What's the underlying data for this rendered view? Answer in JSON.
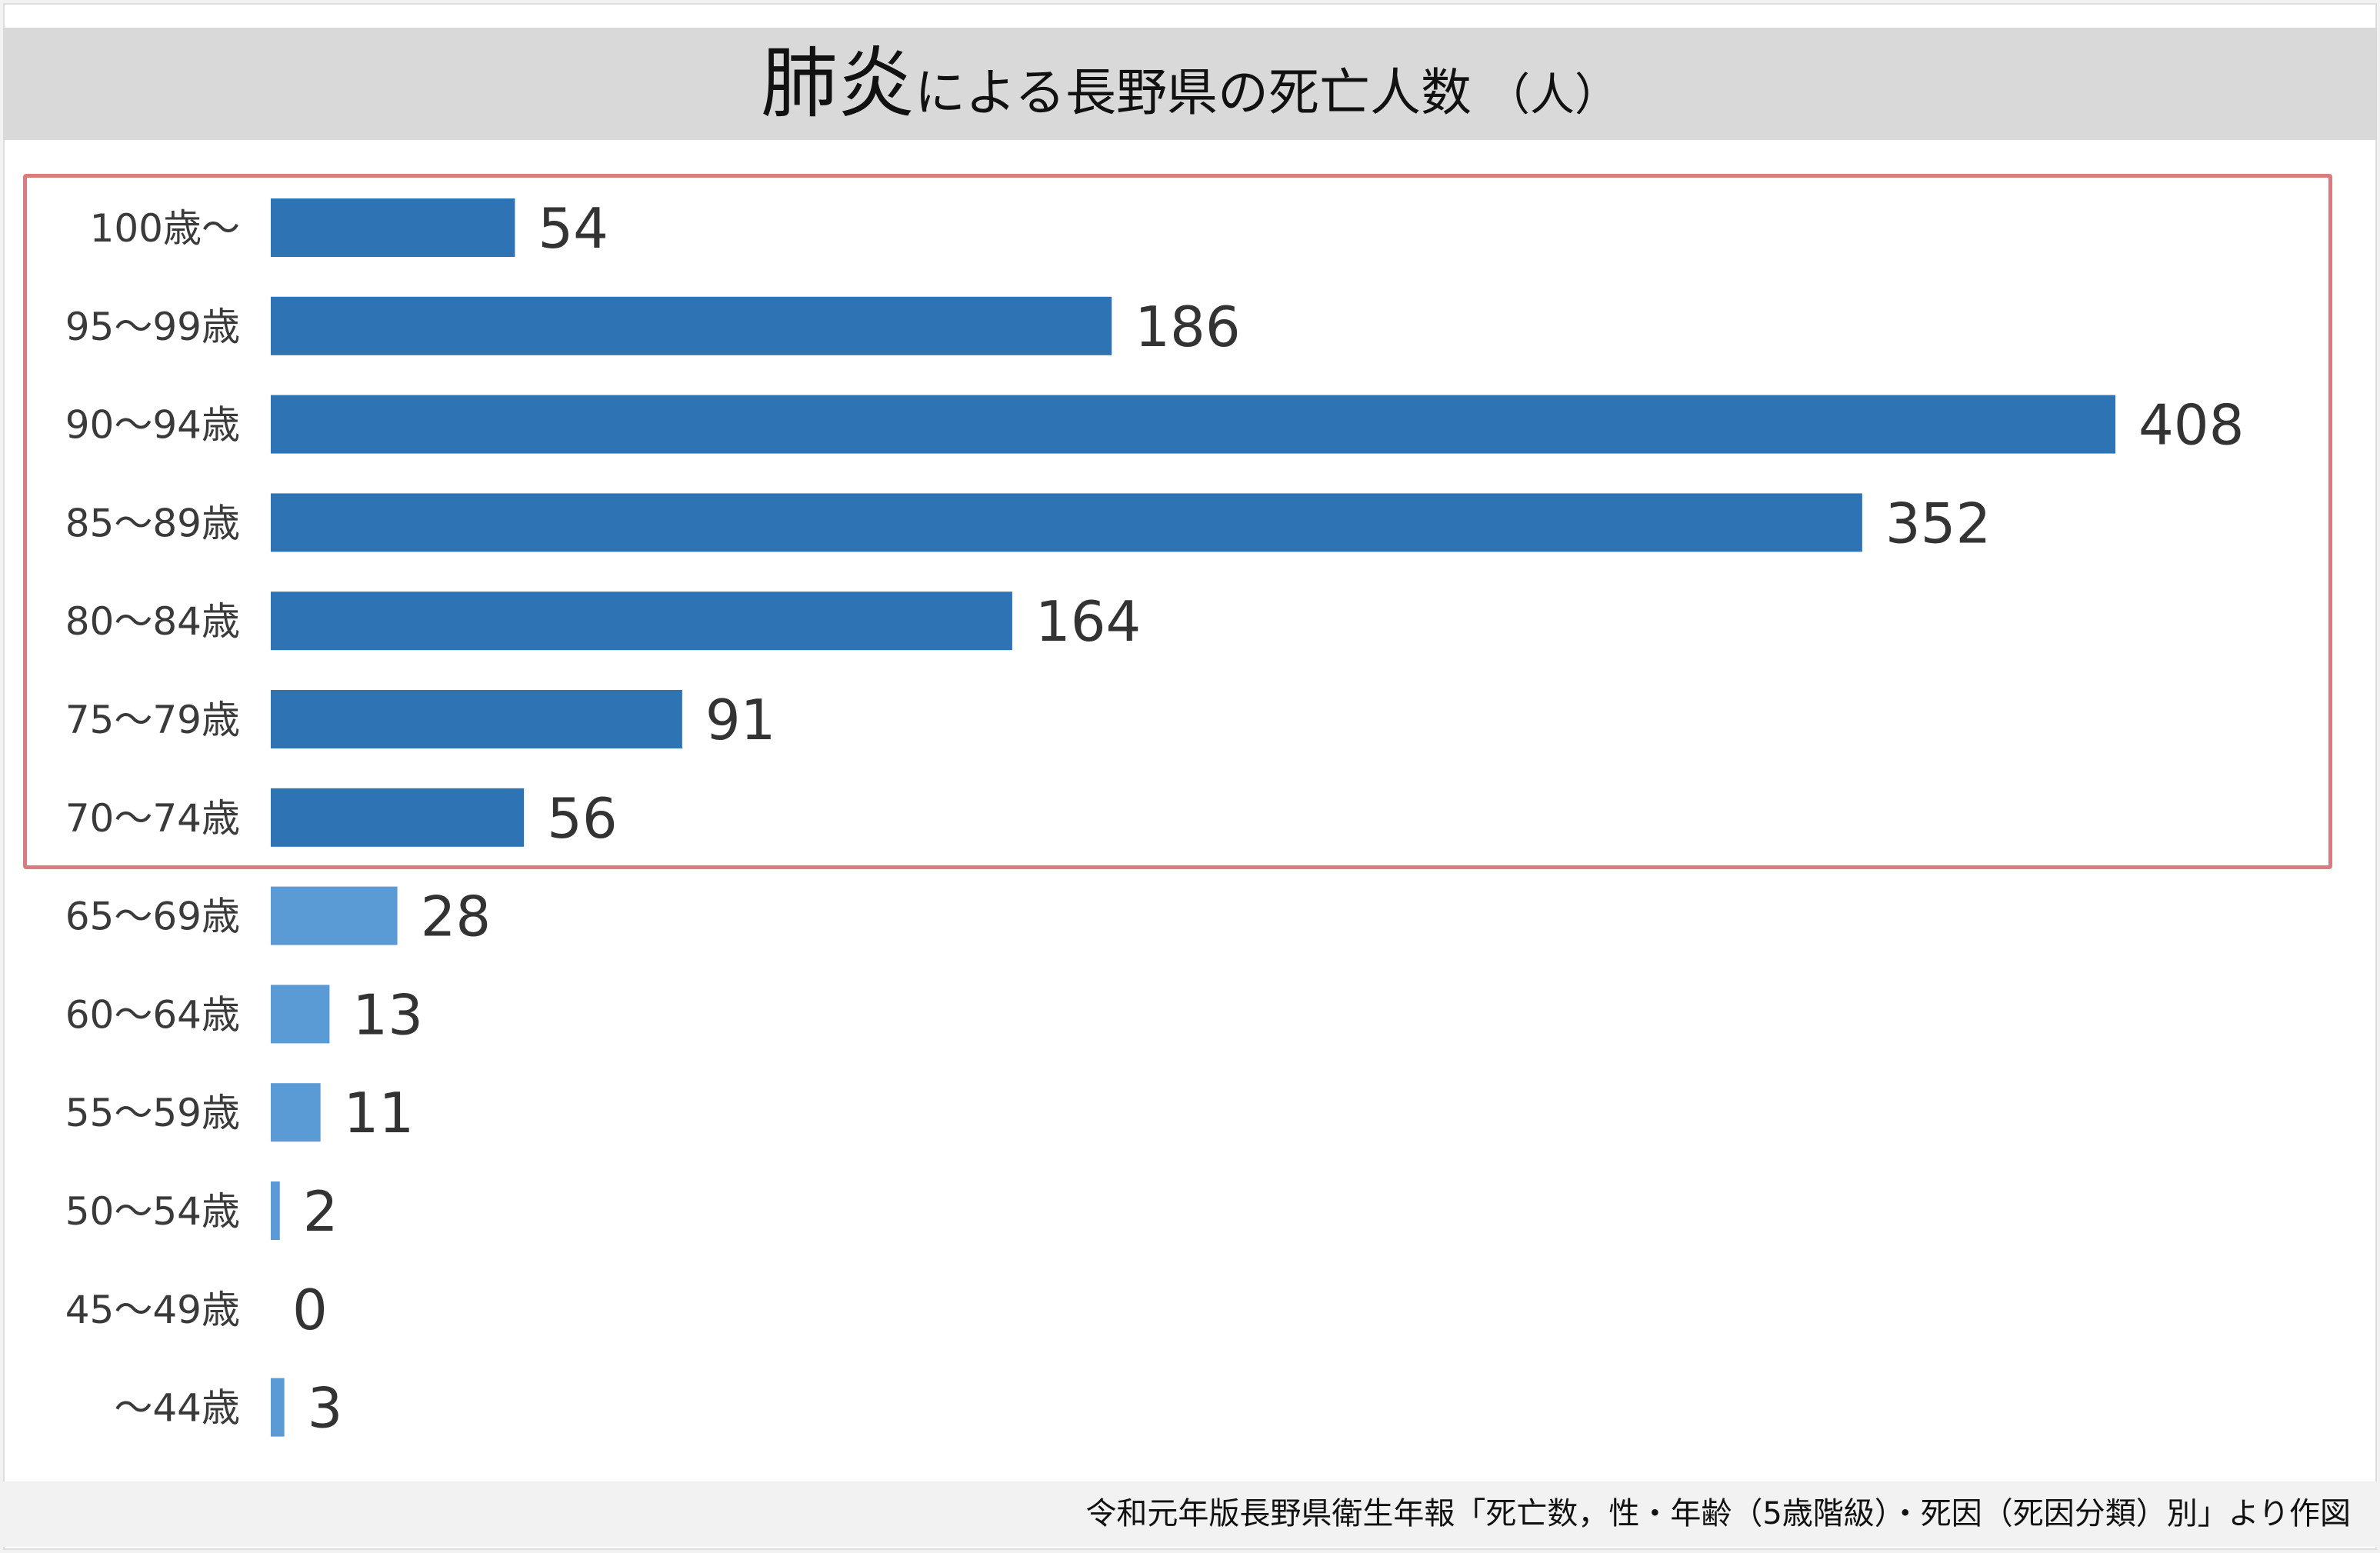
{
  "title": {
    "main": "肺炎",
    "sub": "による長野県の死亡人数",
    "unit": "（人）"
  },
  "footer": {
    "source": "令和元年版長野県衛生年報「死亡数，性・年齢（5歳階級）・死因（死因分類）別」より作図"
  },
  "colors": {
    "highlight_bar": "#2e74b5",
    "normal_bar": "#5b9bd5",
    "highlight_border": "#d97b80",
    "title_band": "#d9d9d9"
  },
  "chart_data": {
    "type": "bar",
    "orientation": "horizontal",
    "categories": [
      "100歳～",
      "95～99歳",
      "90～94歳",
      "85～89歳",
      "80～84歳",
      "75～79歳",
      "70～74歳",
      "65～69歳",
      "60～64歳",
      "55～59歳",
      "50～54歳",
      "45～49歳",
      "～44歳"
    ],
    "values": [
      54,
      186,
      408,
      352,
      164,
      91,
      56,
      28,
      13,
      11,
      2,
      0,
      3
    ],
    "highlighted": [
      "100歳～",
      "95～99歳",
      "90～94歳",
      "85～89歳",
      "80～84歳",
      "75～79歳",
      "70～74歳"
    ],
    "xlim": [
      0,
      408
    ],
    "grid": false,
    "legend": "none"
  }
}
